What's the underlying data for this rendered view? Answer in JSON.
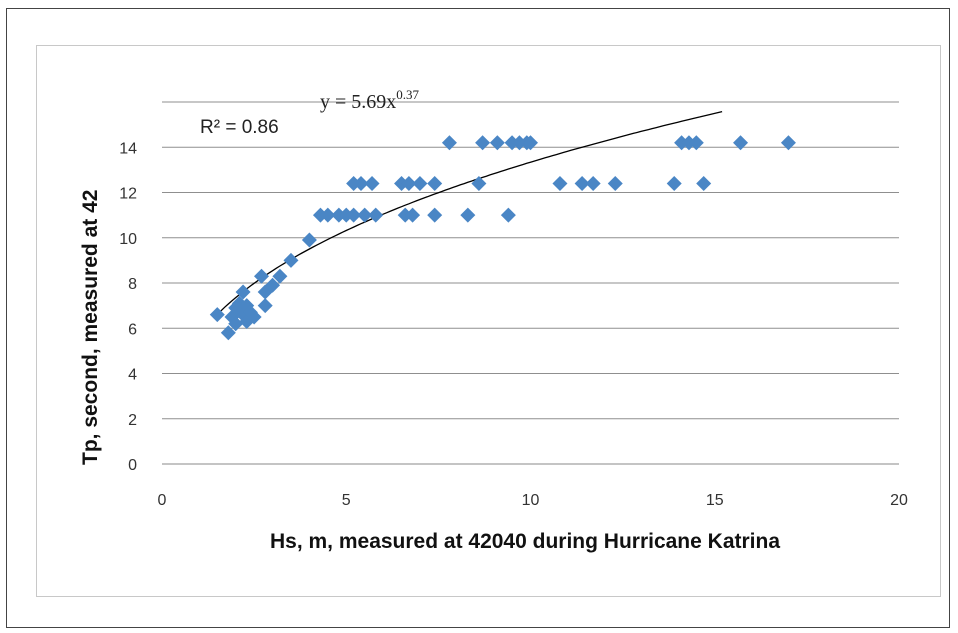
{
  "chart_data": {
    "type": "scatter",
    "title": "",
    "xlabel": "Hs, m, measured at 42040 during Hurricane Katrina",
    "ylabel": "Tp, second, measured at 42",
    "xlim": [
      0,
      20
    ],
    "ylim": [
      0,
      16
    ],
    "x_ticks": [
      "0",
      "5",
      "10",
      "15",
      "20"
    ],
    "y_ticks": [
      "0",
      "2",
      "4",
      "6",
      "8",
      "10",
      "12",
      "14"
    ],
    "grid": "horizontal",
    "legend": "none",
    "marker_color": "#4a86c5",
    "trendline": {
      "type": "power",
      "a": 5.69,
      "b": 0.37,
      "color": "#000000"
    },
    "annotations": {
      "equation": "y = 5.69x",
      "exponent": "0.37",
      "r2": "R² = 0.86"
    },
    "series": [
      {
        "x": [
          1.5,
          1.8,
          1.9,
          2.0,
          2.0,
          2.1,
          2.2,
          2.2,
          2.3,
          2.3,
          2.4,
          2.5,
          2.7,
          2.8,
          2.8,
          3.0,
          3.2,
          3.5,
          4.0,
          4.3,
          4.5,
          4.8,
          5.0,
          5.2,
          5.2,
          5.4,
          5.5,
          5.7,
          5.8,
          6.5,
          6.6,
          6.7,
          6.8,
          7.0,
          7.4,
          7.4,
          7.8,
          8.3,
          8.6,
          8.7,
          9.1,
          9.4,
          9.5,
          9.7,
          9.9,
          10.0,
          10.8,
          11.4,
          11.7,
          12.3,
          13.9,
          14.1,
          14.3,
          14.5,
          14.7,
          15.7,
          17.0
        ],
        "y": [
          6.6,
          5.8,
          6.5,
          6.9,
          6.2,
          7.1,
          7.6,
          6.6,
          6.3,
          7.0,
          6.7,
          6.5,
          8.3,
          7.0,
          7.6,
          7.9,
          8.3,
          9.0,
          9.9,
          11.0,
          11.0,
          11.0,
          11.0,
          12.4,
          11.0,
          12.4,
          11.0,
          12.4,
          11.0,
          12.4,
          11.0,
          12.4,
          11.0,
          12.4,
          11.0,
          12.4,
          14.2,
          11.0,
          12.4,
          14.2,
          14.2,
          11.0,
          14.2,
          14.2,
          14.2,
          14.2,
          12.4,
          12.4,
          12.4,
          12.4,
          12.4,
          14.2,
          14.2,
          14.2,
          12.4,
          14.2,
          14.2
        ]
      }
    ]
  }
}
